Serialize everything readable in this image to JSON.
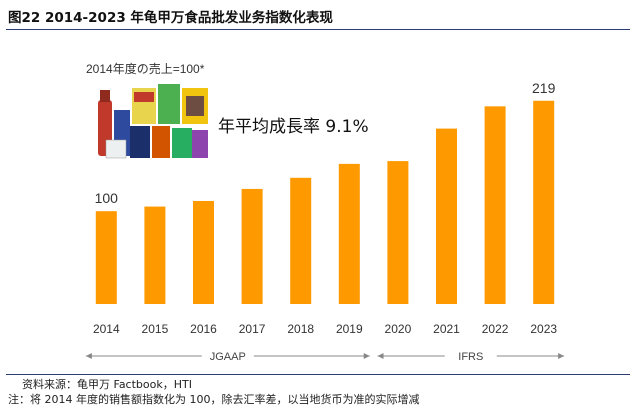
{
  "figure_title": "图22 2014-2023 年龟甲万食品批发业务指数化表现",
  "source": "资料来源：龟甲万 Factbook，HTI",
  "footnote": "注：将 2014 年度的销售额指数化为 100，除去汇率差，以当地货币为准的实际增减",
  "colors": {
    "bar": "#FF9900",
    "rule": "#2c3e73",
    "axis": "#888888"
  },
  "chart_data": {
    "type": "bar",
    "note": "2014年度の売上=100*",
    "annotation": "年平均成長率 9.1%",
    "categories": [
      "2014",
      "2015",
      "2016",
      "2017",
      "2018",
      "2019",
      "2020",
      "2021",
      "2022",
      "2023"
    ],
    "values": [
      100,
      105,
      111,
      124,
      136,
      151,
      154,
      189,
      213,
      219
    ],
    "value_labels": {
      "2014": "100",
      "2023": "219"
    },
    "ylim": [
      0,
      250
    ],
    "grid": false,
    "periods": [
      {
        "label": "JGAAP",
        "from": "2014",
        "to": "2019"
      },
      {
        "label": "IFRS",
        "from": "2020",
        "to": "2023"
      }
    ]
  }
}
